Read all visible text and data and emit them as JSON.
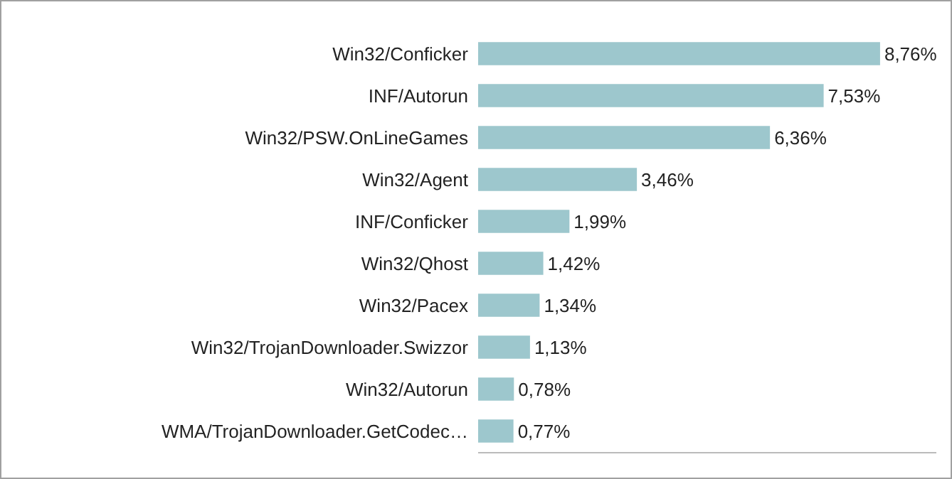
{
  "chart_data": {
    "type": "bar",
    "orientation": "horizontal",
    "categories": [
      "Win32/Conficker",
      "INF/Autorun",
      "Win32/PSW.OnLineGames",
      "Win32/Agent",
      "INF/Conficker",
      "Win32/Qhost",
      "Win32/Pacex",
      "Win32/TrojanDownloader.Swizzor",
      "Win32/Autorun",
      "WMA/TrojanDownloader.GetCodec…"
    ],
    "values": [
      8.76,
      7.53,
      6.36,
      3.46,
      1.99,
      1.42,
      1.34,
      1.13,
      0.78,
      0.77
    ],
    "value_labels": [
      "8,76%",
      "7,53%",
      "6,36%",
      "3,46%",
      "1,99%",
      "1,42%",
      "1,34%",
      "1,13%",
      "0,78%",
      "0,77%"
    ],
    "color": "#9dc7cd",
    "tick_labels": "y",
    "grid": false,
    "legend": false
  }
}
